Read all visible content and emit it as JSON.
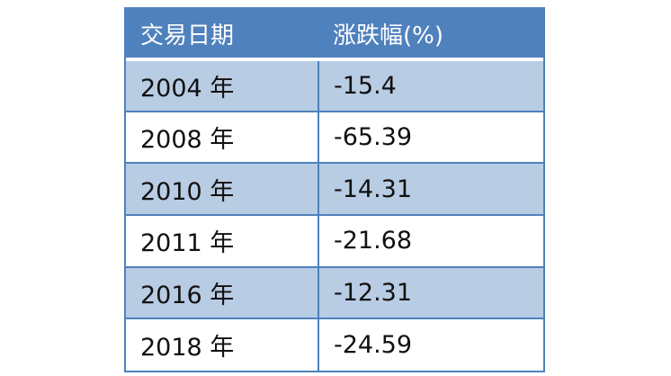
{
  "table": {
    "headers": [
      "交易日期",
      "涨跌幅(%)"
    ],
    "rows": [
      {
        "year": "2004 年",
        "change": "-15.4"
      },
      {
        "year": "2008 年",
        "change": "-65.39"
      },
      {
        "year": "2010 年",
        "change": "-14.31"
      },
      {
        "year": "2011 年",
        "change": "-21.68"
      },
      {
        "year": "2016 年",
        "change": "-12.31"
      },
      {
        "year": "2018 年",
        "change": "-24.59"
      }
    ]
  },
  "colors": {
    "header_bg": "#4f81bd",
    "header_text": "#ffffff",
    "band_row": "#b8cce4",
    "plain_row": "#ffffff",
    "border": "#4f81bd"
  }
}
